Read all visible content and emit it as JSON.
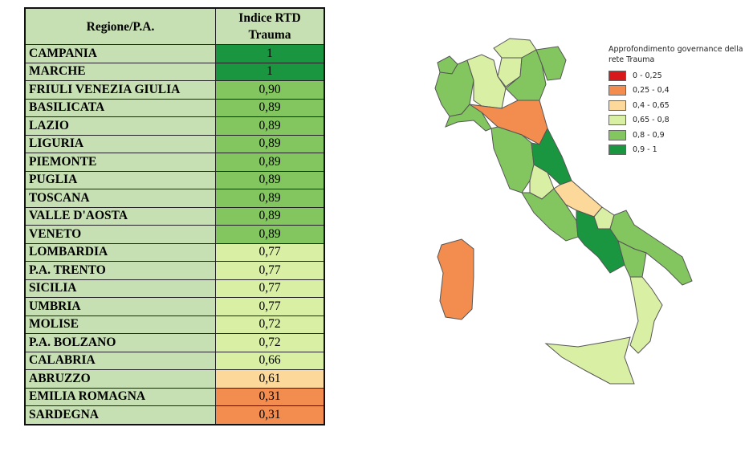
{
  "table": {
    "headers": [
      "Regione/P.A.",
      "Indice RTD Trauma"
    ],
    "rows": [
      {
        "region": "CAMPANIA",
        "value": "1"
      },
      {
        "region": "MARCHE",
        "value": "1"
      },
      {
        "region": "FRIULI VENEZIA GIULIA",
        "value": "0,90"
      },
      {
        "region": "BASILICATA",
        "value": "0,89"
      },
      {
        "region": "LAZIO",
        "value": "0,89"
      },
      {
        "region": "LIGURIA",
        "value": "0,89"
      },
      {
        "region": "PIEMONTE",
        "value": "0,89"
      },
      {
        "region": "PUGLIA",
        "value": "0,89"
      },
      {
        "region": "TOSCANA",
        "value": "0,89"
      },
      {
        "region": "VALLE D'AOSTA",
        "value": "0,89"
      },
      {
        "region": "VENETO",
        "value": "0,89"
      },
      {
        "region": "LOMBARDIA",
        "value": "0,77"
      },
      {
        "region": "P.A. TRENTO",
        "value": "0,77"
      },
      {
        "region": "SICILIA",
        "value": "0,77"
      },
      {
        "region": "UMBRIA",
        "value": "0,77"
      },
      {
        "region": "MOLISE",
        "value": "0,72"
      },
      {
        "region": "P.A. BOLZANO",
        "value": "0,72"
      },
      {
        "region": "CALABRIA",
        "value": "0,66"
      },
      {
        "region": "ABRUZZO",
        "value": "0,61"
      },
      {
        "region": "EMILIA ROMAGNA",
        "value": "0,31"
      },
      {
        "region": "SARDEGNA",
        "value": "0,31"
      }
    ]
  },
  "legend": {
    "title": "Approfondimento governance della rete Trauma",
    "classes": [
      {
        "label": "0 - 0,25",
        "color": "#d7191c",
        "min": 0,
        "max": 0.25
      },
      {
        "label": "0,25 - 0,4",
        "color": "#f28c4f",
        "min": 0.25,
        "max": 0.4
      },
      {
        "label": "0,4 - 0,65",
        "color": "#fcd99a",
        "min": 0.4,
        "max": 0.65
      },
      {
        "label": "0,65 - 0,8",
        "color": "#d9efa4",
        "min": 0.65,
        "max": 0.8
      },
      {
        "label": "0,8 - 0,9",
        "color": "#83c660",
        "min": 0.8,
        "max": 0.9
      },
      {
        "label": "0,9 - 1",
        "color": "#1a9641",
        "min": 0.9,
        "max": 1
      }
    ]
  }
}
